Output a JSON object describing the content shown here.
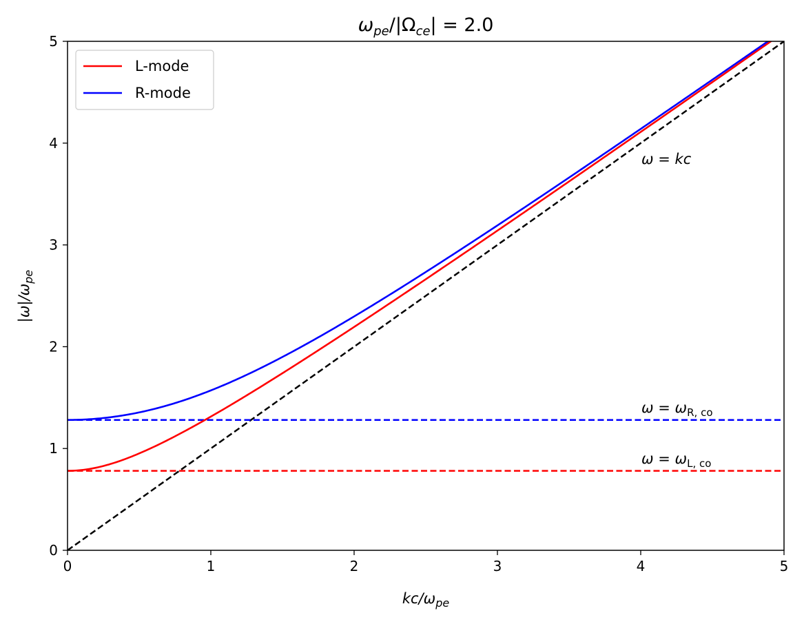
{
  "chart_data": {
    "type": "line",
    "title": "ωpe/|Ωce| = 2.0",
    "title_parts": {
      "omega": "ω",
      "pe": "pe",
      "mid": "/|Ω",
      "ce": "ce",
      "end": "| = 2.0"
    },
    "xlabel": "kc/ωpe",
    "xlabel_parts": {
      "a": "kc/ω",
      "b": "pe"
    },
    "ylabel": "|ω|/ωpe",
    "ylabel_parts": {
      "a": "|ω|/ω",
      "b": "pe"
    },
    "xlim": [
      0,
      5
    ],
    "ylim": [
      0,
      5
    ],
    "xticks": [
      0,
      1,
      2,
      3,
      4,
      5
    ],
    "yticks": [
      0,
      1,
      2,
      3,
      4,
      5
    ],
    "xtick_labels": [
      "0",
      "1",
      "2",
      "3",
      "4",
      "5"
    ],
    "ytick_labels": [
      "0",
      "1",
      "2",
      "3",
      "4",
      "5"
    ],
    "ratio": 2.0,
    "series": [
      {
        "name": "L-mode",
        "color": "#ff0000",
        "style": "solid",
        "cutoff": 0.7808,
        "x": [
          0,
          0.25,
          0.5,
          0.75,
          1,
          1.5,
          2,
          2.5,
          3,
          3.5,
          4,
          4.5,
          4.9
        ],
        "y": [
          0.781,
          0.84,
          0.98,
          1.16,
          1.33,
          1.74,
          2.17,
          2.62,
          3.08,
          3.55,
          4.03,
          4.51,
          4.9
        ]
      },
      {
        "name": "R-mode",
        "color": "#0000ff",
        "style": "solid",
        "cutoff": 1.2808,
        "x": [
          0,
          0.25,
          0.5,
          0.75,
          1,
          1.5,
          2,
          2.5,
          3,
          3.5,
          4,
          4.5,
          4.9
        ],
        "y": [
          1.281,
          1.31,
          1.39,
          1.5,
          1.62,
          1.96,
          2.33,
          2.73,
          3.16,
          3.61,
          4.07,
          4.54,
          4.93
        ]
      }
    ],
    "reference_lines": [
      {
        "name": "ω = kc",
        "color": "#000000",
        "style": "dashed",
        "slope": 1,
        "label": "ω = kc",
        "label_parts": {
          "a": "ω = ",
          "b": "kc",
          "sub": ""
        }
      },
      {
        "name": "ω = ωR,co",
        "color": "#0000ff",
        "style": "dashed",
        "y": 1.2808,
        "label": "ω = ωR, co",
        "label_parts": {
          "a": "ω = ω",
          "sub": "R, co"
        }
      },
      {
        "name": "ω = ωL,co",
        "color": "#ff0000",
        "style": "dashed",
        "y": 0.7808,
        "label": "ω = ωL, co",
        "label_parts": {
          "a": "ω = ω",
          "sub": "L, co"
        }
      }
    ],
    "legend": {
      "position": "top-left",
      "entries": [
        "L-mode",
        "R-mode"
      ]
    }
  }
}
